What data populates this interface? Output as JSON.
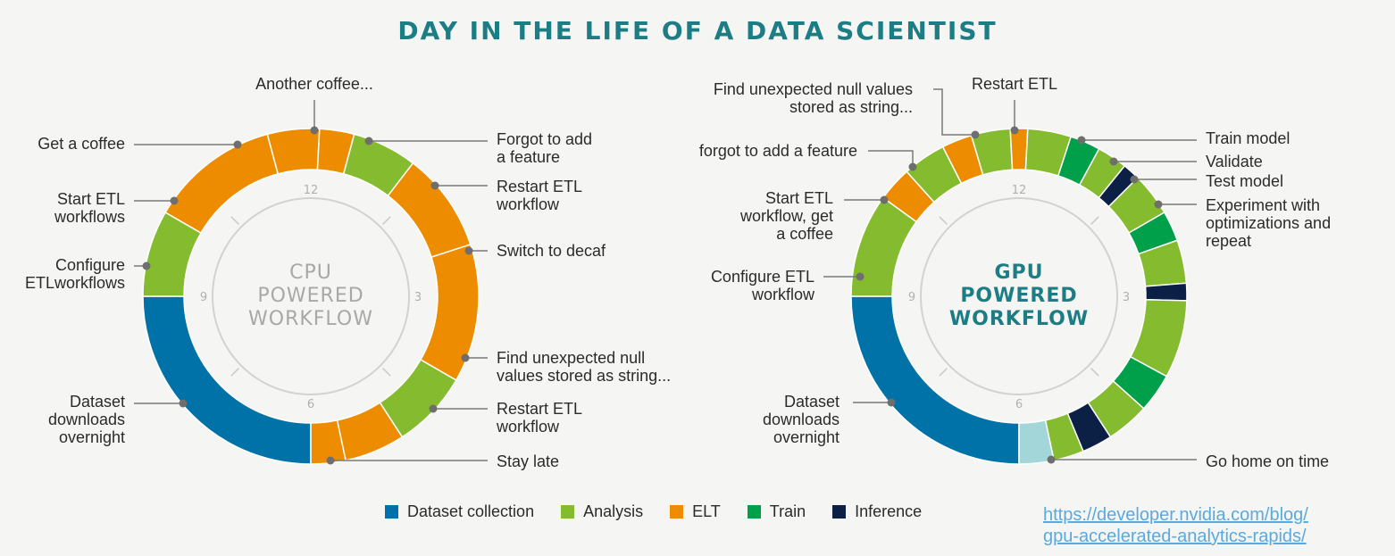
{
  "title": "DAY IN THE LIFE OF A DATA SCIENTIST",
  "colors": {
    "dataset": "#0072a8",
    "analysis": "#85bb2f",
    "etl": "#ee8c00",
    "train": "#00a04a",
    "inference": "#0c1f45",
    "home": "#a2d6d8"
  },
  "legend": [
    {
      "label": "Dataset collection",
      "color": "#0072a8"
    },
    {
      "label": "Analysis",
      "color": "#85bb2f"
    },
    {
      "label": "ELT",
      "color": "#ee8c00"
    },
    {
      "label": "Train",
      "color": "#00a04a"
    },
    {
      "label": "Inference",
      "color": "#0c1f45"
    }
  ],
  "source_link": [
    "https://developer.nvidia.com/blog/",
    "gpu-accelerated-analytics-rapids/"
  ],
  "cpu": {
    "center_label": [
      "CPU",
      "POWERED",
      "WORKFLOW"
    ],
    "clock_numbers": [
      "12",
      "3",
      "6",
      "9"
    ],
    "segments": [
      {
        "activity": "Dataset downloads overnight",
        "category": "dataset",
        "start_hour": 6,
        "end_hour": 9.0
      },
      {
        "activity": "Configure ETLworkflows",
        "category": "analysis",
        "start_hour": 9.0,
        "end_hour": 10.0
      },
      {
        "activity": "Start ETL workflows",
        "category": "etl",
        "start_hour": 10.0,
        "end_hour": 11.5
      },
      {
        "activity": "Get a coffee",
        "category": "etl",
        "start_hour": 11.5,
        "end_hour": 12.1
      },
      {
        "activity": "Another coffee...",
        "category": "etl",
        "start_hour": 12.1,
        "end_hour": 12.5
      },
      {
        "activity": "Forgot to add a feature",
        "category": "analysis",
        "start_hour": 12.5,
        "end_hour": 13.25
      },
      {
        "activity": "Restart ETL workflow",
        "category": "etl",
        "start_hour": 13.25,
        "end_hour": 14.4
      },
      {
        "activity": "Switch to decaf",
        "category": "etl",
        "start_hour": 14.4,
        "end_hour": 16.0
      },
      {
        "activity": "Find unexpected null values stored as string...",
        "category": "analysis",
        "start_hour": 16.0,
        "end_hour": 16.9
      },
      {
        "activity": "Restart ETL workflow",
        "category": "etl",
        "start_hour": 16.9,
        "end_hour": 17.6
      },
      {
        "activity": "Stay late",
        "category": "etl",
        "start_hour": 17.6,
        "end_hour": 18.0
      }
    ],
    "labels": [
      {
        "lines": [
          "Another coffee..."
        ],
        "side": "top"
      },
      {
        "lines": [
          "Get a coffee"
        ],
        "side": "left"
      },
      {
        "lines": [
          "Start ETL",
          "workflows"
        ],
        "side": "left"
      },
      {
        "lines": [
          "Configure",
          "ETLworkflows"
        ],
        "side": "left"
      },
      {
        "lines": [
          "Dataset",
          "downloads",
          "overnight"
        ],
        "side": "left"
      },
      {
        "lines": [
          "Forgot to add",
          "a feature"
        ],
        "side": "right"
      },
      {
        "lines": [
          "Restart ETL",
          "workflow"
        ],
        "side": "right"
      },
      {
        "lines": [
          "Switch to decaf"
        ],
        "side": "right"
      },
      {
        "lines": [
          "Find unexpected null",
          "values stored as string..."
        ],
        "side": "right"
      },
      {
        "lines": [
          "Restart ETL",
          "workflow"
        ],
        "side": "right"
      },
      {
        "lines": [
          "Stay late"
        ],
        "side": "right"
      }
    ]
  },
  "gpu": {
    "center_label": [
      "GPU",
      "POWERED",
      "WORKFLOW"
    ],
    "clock_numbers": [
      "12",
      "3",
      "6",
      "9"
    ],
    "segments": [
      {
        "activity": "Dataset downloads overnight",
        "category": "dataset",
        "start_hour": 6,
        "end_hour": 9.0
      },
      {
        "activity": "Configure ETL workflow",
        "category": "analysis",
        "start_hour": 9.0,
        "end_hour": 10.2
      },
      {
        "activity": "Start ETL workflow, get a coffee",
        "category": "etl",
        "start_hour": 10.2,
        "end_hour": 10.6
      },
      {
        "activity": "forgot to add a feature",
        "category": "analysis",
        "start_hour": 10.6,
        "end_hour": 11.1
      },
      {
        "activity": "ETL",
        "category": "etl",
        "start_hour": 11.1,
        "end_hour": 11.45
      },
      {
        "activity": "Find unexpected null values stored as string...",
        "category": "analysis",
        "start_hour": 11.45,
        "end_hour": 11.9
      },
      {
        "activity": "Restart ETL",
        "category": "etl",
        "start_hour": 11.9,
        "end_hour": 12.1
      },
      {
        "activity": "Analysis",
        "category": "analysis",
        "start_hour": 12.1,
        "end_hour": 12.6
      },
      {
        "activity": "Train model",
        "category": "train",
        "start_hour": 12.6,
        "end_hour": 12.95
      },
      {
        "activity": "Validate",
        "category": "analysis",
        "start_hour": 12.95,
        "end_hour": 13.3
      },
      {
        "activity": "Test model",
        "category": "inference",
        "start_hour": 13.3,
        "end_hour": 13.5
      },
      {
        "activity": "Experiment with optimizations and repeat",
        "category": "analysis",
        "start_hour": 13.5,
        "end_hour": 14.0
      },
      {
        "activity": "Train",
        "category": "train",
        "start_hour": 14.0,
        "end_hour": 14.35
      },
      {
        "activity": "Analysis",
        "category": "analysis",
        "start_hour": 14.35,
        "end_hour": 14.85
      },
      {
        "activity": "Inference",
        "category": "inference",
        "start_hour": 14.85,
        "end_hour": 15.05
      },
      {
        "activity": "Analysis",
        "category": "analysis",
        "start_hour": 15.05,
        "end_hour": 15.95
      },
      {
        "activity": "Train",
        "category": "train",
        "start_hour": 15.95,
        "end_hour": 16.4
      },
      {
        "activity": "Analysis",
        "category": "analysis",
        "start_hour": 16.4,
        "end_hour": 16.9
      },
      {
        "activity": "Inference",
        "category": "inference",
        "start_hour": 16.9,
        "end_hour": 17.25
      },
      {
        "activity": "Analysis",
        "category": "analysis",
        "start_hour": 17.25,
        "end_hour": 17.6
      },
      {
        "activity": "Go home on time",
        "category": "home",
        "start_hour": 17.6,
        "end_hour": 18.0
      }
    ],
    "labels": [
      {
        "lines": [
          "Restart ETL"
        ],
        "side": "top"
      },
      {
        "lines": [
          "Find unexpected null values",
          "stored as string..."
        ],
        "side": "left"
      },
      {
        "lines": [
          "forgot to add a feature"
        ],
        "side": "left"
      },
      {
        "lines": [
          "Start ETL",
          "workflow, get",
          "a coffee"
        ],
        "side": "left"
      },
      {
        "lines": [
          "Configure ETL",
          "workflow"
        ],
        "side": "left"
      },
      {
        "lines": [
          "Dataset",
          "downloads",
          "overnight"
        ],
        "side": "left"
      },
      {
        "lines": [
          "Train model"
        ],
        "side": "right"
      },
      {
        "lines": [
          "Validate"
        ],
        "side": "right"
      },
      {
        "lines": [
          "Test model"
        ],
        "side": "right"
      },
      {
        "lines": [
          "Experiment with",
          "optimizations and",
          "repeat"
        ],
        "side": "right"
      },
      {
        "lines": [
          "Go home on time"
        ],
        "side": "right"
      }
    ]
  }
}
